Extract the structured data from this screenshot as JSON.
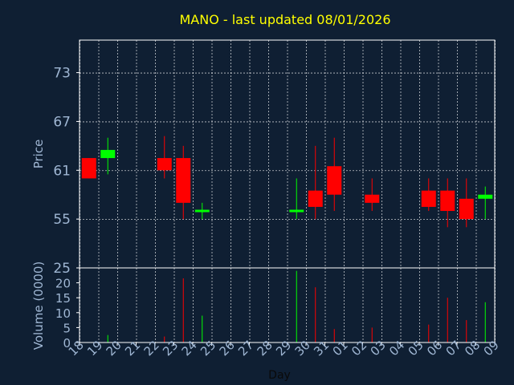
{
  "chart_data": {
    "type": "candlestick",
    "title": "MANO - last updated 08/01/2026",
    "xlabel": "Day",
    "price_panel": {
      "ylabel": "Price",
      "ylim": [
        49,
        77
      ],
      "yticks": [
        55,
        61,
        67,
        73
      ]
    },
    "volume_panel": {
      "ylabel": "Volume (0000)",
      "ylim": [
        0,
        25
      ],
      "yticks": [
        0,
        5,
        10,
        15,
        20,
        25
      ]
    },
    "x_tick_labels": [
      "18",
      "19",
      "20",
      "21",
      "22",
      "23",
      "24",
      "25",
      "26",
      "27",
      "28",
      "29",
      "30",
      "31",
      "01",
      "02",
      "03",
      "04",
      "05",
      "06",
      "07",
      "08",
      "09"
    ],
    "candles": [
      {
        "x": "18",
        "open": 62.5,
        "close": 60.0,
        "high": 62.5,
        "low": 60.0,
        "volume": 0
      },
      {
        "x": "19",
        "open": 62.5,
        "close": 63.5,
        "high": 65.0,
        "low": 60.5,
        "volume": 2.5
      },
      {
        "x": "22",
        "open": 62.5,
        "close": 61.0,
        "high": 65.2,
        "low": 60.0,
        "volume": 2
      },
      {
        "x": "23",
        "open": 62.5,
        "close": 57.0,
        "high": 64.0,
        "low": 55.0,
        "volume": 21.5
      },
      {
        "x": "24",
        "open": 56.0,
        "close": 56.0,
        "high": 57.0,
        "low": 55.0,
        "volume": 9
      },
      {
        "x": "29",
        "open": 56.0,
        "close": 56.0,
        "high": 60.0,
        "low": 55.0,
        "volume": 24
      },
      {
        "x": "30",
        "open": 58.5,
        "close": 56.5,
        "high": 64.0,
        "low": 55.0,
        "volume": 18.5
      },
      {
        "x": "31",
        "open": 61.5,
        "close": 58.0,
        "high": 65.0,
        "low": 56.0,
        "volume": 4.5
      },
      {
        "x": "02",
        "open": 58.0,
        "close": 57.0,
        "high": 60.0,
        "low": 56.0,
        "volume": 5
      },
      {
        "x": "05",
        "open": 58.5,
        "close": 56.5,
        "high": 60.0,
        "low": 56.0,
        "volume": 6
      },
      {
        "x": "06",
        "open": 58.5,
        "close": 56.0,
        "high": 60.0,
        "low": 54.0,
        "volume": 15
      },
      {
        "x": "07",
        "open": 57.5,
        "close": 55.0,
        "high": 60.0,
        "low": 54.0,
        "volume": 7.5
      },
      {
        "x": "08",
        "open": 57.5,
        "close": 58.0,
        "high": 59.0,
        "low": 55.0,
        "volume": 13.5
      }
    ],
    "colors": {
      "background": "#0f1f33",
      "up": "#00ff00",
      "down": "#ff0000",
      "grid": "#ffffff",
      "tick_text": "#9fb6d3",
      "title": "#ffff00"
    },
    "grid": true
  }
}
